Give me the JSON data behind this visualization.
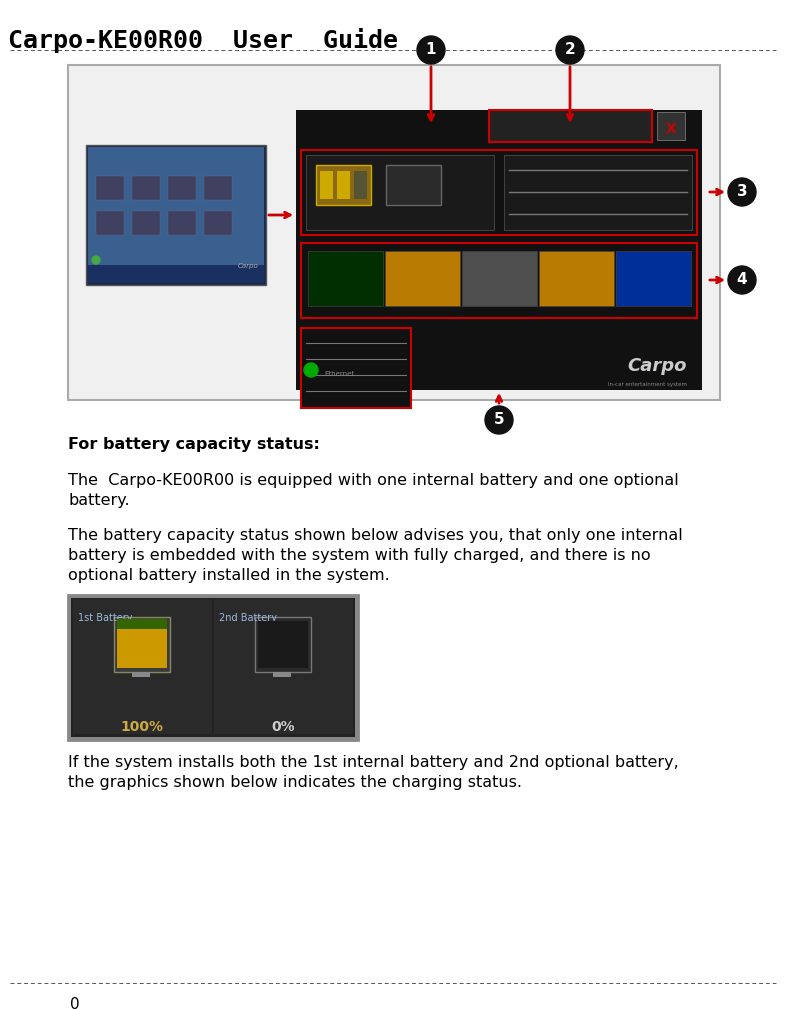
{
  "title": "Carpo-KE00R00  User  Guide",
  "page_number": "0",
  "bg_color": "#ffffff",
  "title_font_size": 18,
  "body_font_size": 11.5,
  "bold_text": "For battery capacity status:",
  "para1_line1": "The  Carpo-KE00R00 is equipped with one internal battery and one optional",
  "para1_line2": "battery.",
  "para2_line1": "The battery capacity status shown below advises you, that only one internal",
  "para2_line2": "battery is embedded with the system with fully charged, and there is no",
  "para2_line3": "optional battery installed in the system.",
  "para3_line1": "If the system installs both the 1st internal battery and 2nd optional battery,",
  "para3_line2": "the graphics shown below indicates the charging status.",
  "dashed_line_color": "#555555",
  "label1_batt": "1st Battery",
  "label2_batt": "2nd Battery",
  "pct1": "100%",
  "pct2": "0%"
}
